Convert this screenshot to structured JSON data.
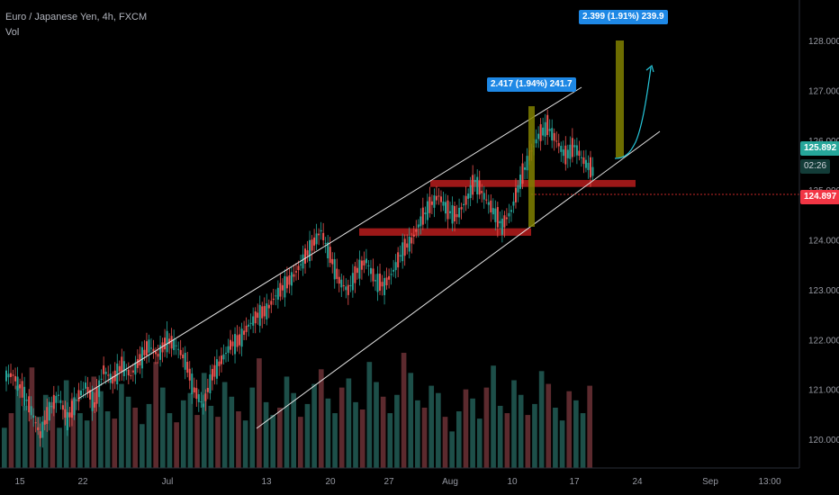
{
  "header": {
    "title": "Euro / Japanese Yen, 4h, FXCM",
    "indicator": "Vol"
  },
  "chart_data": {
    "type": "line",
    "title": "Euro / Japanese Yen, 4h, FXCM",
    "y_ticks": [
      "128.000",
      "127.000",
      "126.000",
      "125.000",
      "124.000",
      "123.000",
      "122.000",
      "121.000",
      "120.000"
    ],
    "x_ticks": [
      "15",
      "22",
      "Jul",
      "13",
      "20",
      "27",
      "Aug",
      "10",
      "17",
      "24",
      "Sep",
      "13:00"
    ],
    "ylim": [
      119.4,
      128.6
    ],
    "grid": false,
    "price_labels": {
      "last": "125.892",
      "countdown": "02:26",
      "level": "124.897"
    },
    "measurements": [
      {
        "label": "2.417 (1.94%) 241.7"
      },
      {
        "label": "2.399 (1.91%) 239.9"
      }
    ],
    "series": [
      {
        "values": [
          121.3,
          121.0,
          120.6,
          120.1,
          120.6,
          120.9,
          120.4,
          120.8,
          121.1,
          120.7,
          121.4,
          121.2,
          121.5,
          121.3,
          121.6,
          121.9,
          121.7,
          122.0,
          121.9,
          121.6,
          121.0,
          120.7,
          121.3,
          121.6,
          121.9,
          122.0,
          122.3,
          122.5,
          122.6,
          122.9,
          123.1,
          123.3,
          123.6,
          123.9,
          124.2,
          123.7,
          123.2,
          123.0,
          123.4,
          123.6,
          123.2,
          123.1,
          123.4,
          123.8,
          124.0,
          124.4,
          124.7,
          124.9,
          124.6,
          124.5,
          124.8,
          125.2,
          124.9,
          124.6,
          124.3,
          124.6,
          125.2,
          125.7,
          126.1,
          126.3,
          126.0,
          125.7,
          125.9,
          125.6,
          125.4
        ]
      }
    ],
    "zones": [
      {
        "from": 124.1,
        "to": 124.25
      },
      {
        "from": 125.08,
        "to": 125.22
      }
    ],
    "volume": [
      22,
      30,
      45,
      34,
      55,
      28,
      40,
      36,
      22,
      48,
      38,
      30,
      26,
      50,
      42,
      31,
      27,
      46,
      39,
      33,
      24,
      35,
      58,
      44,
      30,
      25,
      37,
      41,
      29,
      52,
      34,
      28,
      47,
      39,
      31,
      26,
      44,
      60,
      36,
      29,
      33,
      50,
      41,
      28,
      35,
      46,
      54,
      38,
      30,
      44,
      49,
      36,
      32,
      58,
      47,
      39,
      30,
      40,
      63,
      52,
      37,
      33,
      45,
      41,
      28,
      20,
      31,
      43,
      38,
      27,
      44,
      56,
      34,
      30,
      48,
      40,
      29,
      35,
      53,
      46,
      33,
      26,
      42,
      37,
      30,
      45
    ]
  }
}
